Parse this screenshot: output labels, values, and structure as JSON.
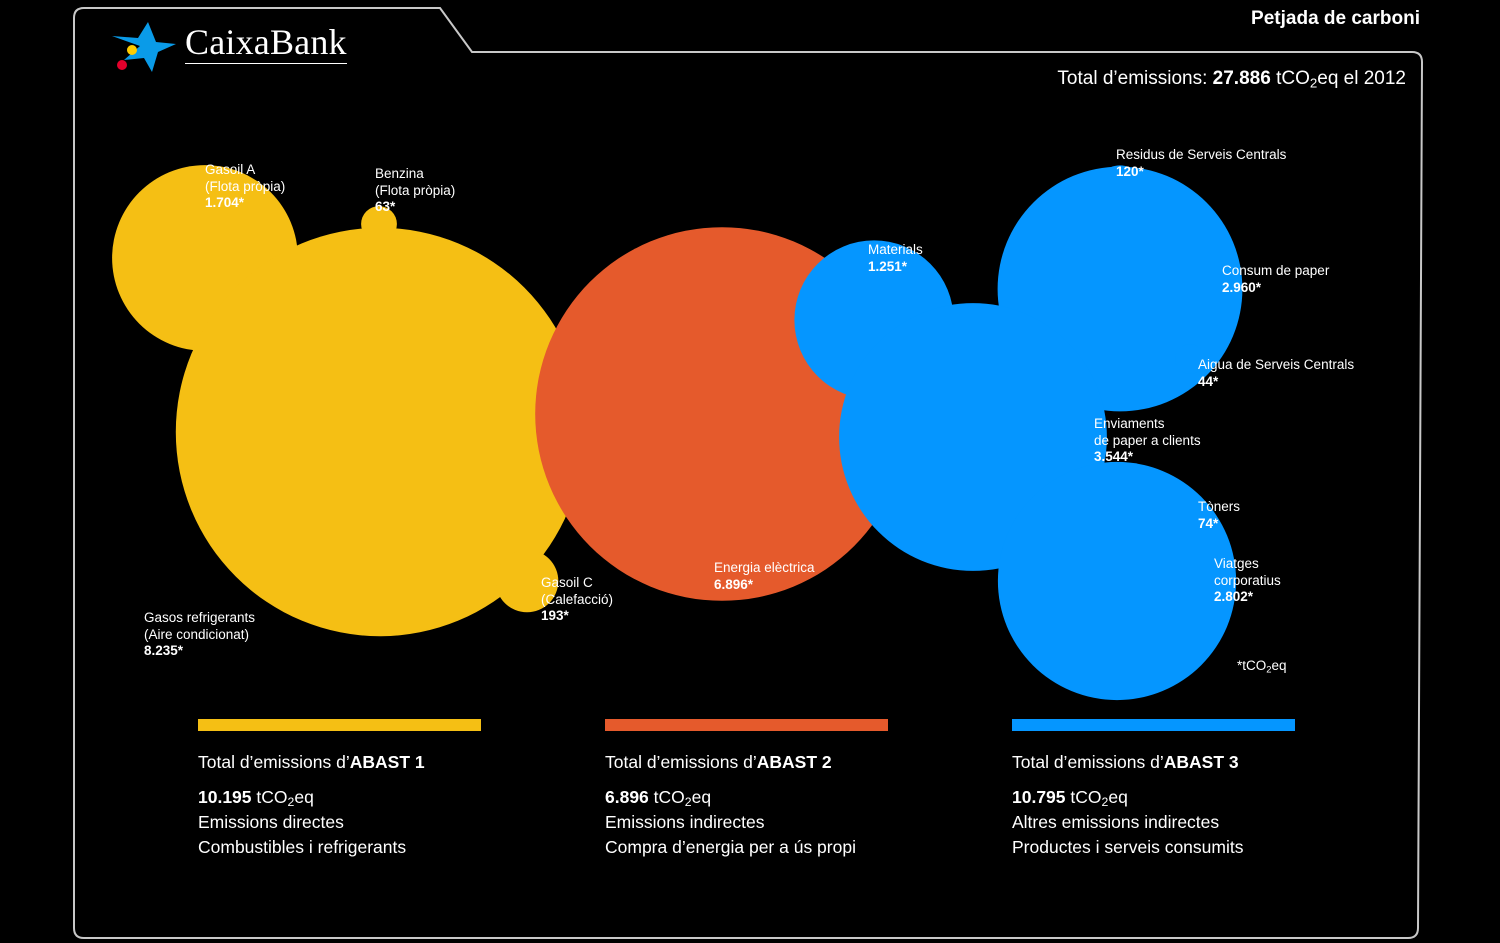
{
  "header": {
    "title": "Petjada de carboni",
    "brand": "CaixaBank",
    "total_prefix": "Total d’emissions: ",
    "total_value": "27.886",
    "total_unit": "tCO",
    "total_unit_sub": "2",
    "total_unit_tail": "eq el 2012"
  },
  "colors": {
    "scope1": "#f5bf14",
    "scope2": "#e55a2c",
    "scope3": "#0596ff",
    "frame": "#c8c8c8",
    "logo_blue": "#0a9be8",
    "logo_red": "#e4002b",
    "logo_yellow": "#ffcc00"
  },
  "chart_data": {
    "type": "bubble",
    "title": "Petjada de carboni",
    "unit": "tCO2eq",
    "unit_note": "*tCO2eq",
    "series": [
      {
        "name": "ABAST 1",
        "items": [
          {
            "label": [
              "Gasoil A",
              "(Flota pròpia)"
            ],
            "value": 1704,
            "display": "1.704*"
          },
          {
            "label": [
              "Benzina",
              "(Flota pròpia)"
            ],
            "value": 63,
            "display": "63*"
          },
          {
            "label": [
              "Gasos refrigerants",
              "(Aire condicionat)"
            ],
            "value": 8235,
            "display": "8.235*"
          },
          {
            "label": [
              "Gasoil C",
              "(Calefacció)"
            ],
            "value": 193,
            "display": "193*"
          }
        ]
      },
      {
        "name": "ABAST 2",
        "items": [
          {
            "label": [
              "Energia elèctrica"
            ],
            "value": 6896,
            "display": "6.896*"
          }
        ]
      },
      {
        "name": "ABAST 3",
        "items": [
          {
            "label": [
              "Materials"
            ],
            "value": 1251,
            "display": "1.251*"
          },
          {
            "label": [
              "Residus de Serveis Centrals"
            ],
            "value": 120,
            "display": "120*"
          },
          {
            "label": [
              "Consum de paper"
            ],
            "value": 2960,
            "display": "2.960*"
          },
          {
            "label": [
              "Aigua de Serveis Centrals"
            ],
            "value": 44,
            "display": "44*"
          },
          {
            "label": [
              "Enviaments",
              "de paper a clients"
            ],
            "value": 3544,
            "display": "3.544*"
          },
          {
            "label": [
              "Tòners"
            ],
            "value": 74,
            "display": "74*"
          },
          {
            "label": [
              "Viatges",
              "corporatius"
            ],
            "value": 2802,
            "display": "2.802*"
          }
        ]
      }
    ]
  },
  "summaries": [
    {
      "head_prefix": "Total d’emissions d’",
      "head_bold": "ABAST 1",
      "value": "10.195",
      "unit": "tCO",
      "unit_sub": "2",
      "unit_tail": "eq",
      "line1": "Emissions directes",
      "line2": "Combustibles i refrigerants"
    },
    {
      "head_prefix": "Total d’emissions d’",
      "head_bold": "ABAST 2",
      "value": "6.896",
      "unit": "tCO",
      "unit_sub": "2",
      "unit_tail": "eq",
      "line1": "Emissions indirectes",
      "line2": "Compra d’energia per a ús propi"
    },
    {
      "head_prefix": "Total d’emissions d’",
      "head_bold": "ABAST 3",
      "value": "10.795",
      "unit": "tCO",
      "unit_sub": "2",
      "unit_tail": "eq",
      "line1": "Altres emissions indirectes",
      "line2": "Productes i serveis consumits"
    }
  ],
  "unit_note": {
    "prefix": "*tCO",
    "sub": "2",
    "tail": "eq"
  }
}
